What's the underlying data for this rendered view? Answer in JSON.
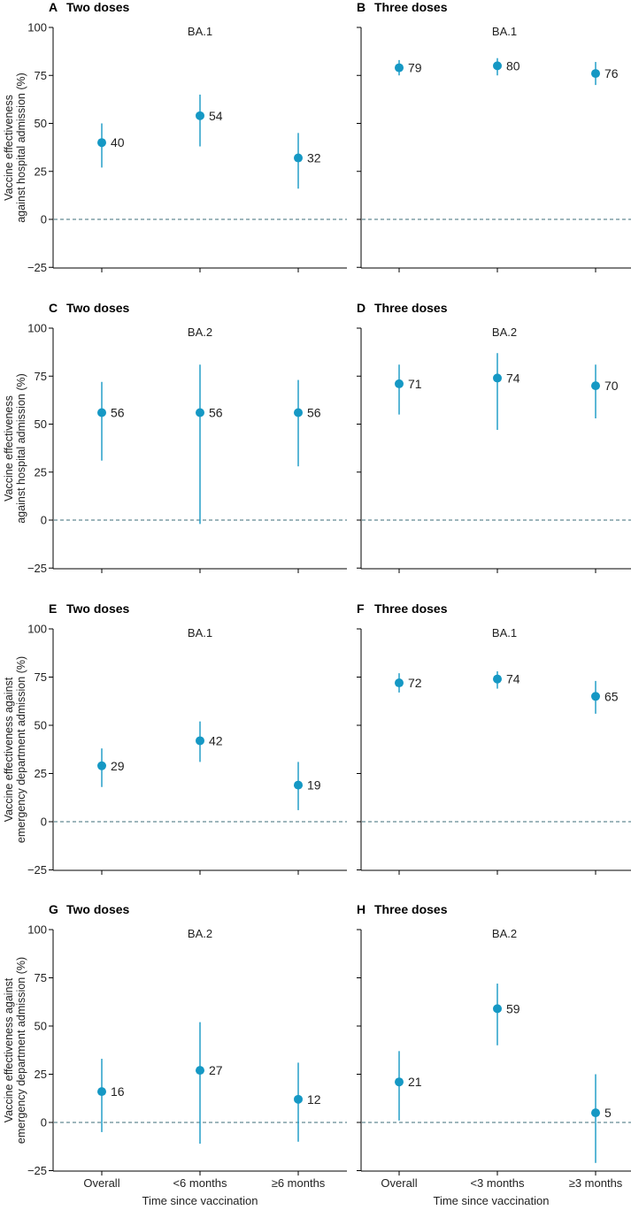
{
  "colors": {
    "point": "#1598c4",
    "ci": "#1598c4",
    "zero_line": "#3d6e7a",
    "axis": "#000000"
  },
  "chart_data": [
    {
      "type": "scatter",
      "panel": "A",
      "title": "Two doses",
      "variant": "BA.1",
      "categories": [
        "Overall",
        "<6 months",
        "≥6 months"
      ],
      "values": [
        40,
        54,
        32
      ],
      "ci_low": [
        27,
        38,
        16
      ],
      "ci_high": [
        50,
        65,
        45
      ],
      "ylim": [
        -25,
        100
      ],
      "yticks": [
        "100",
        "75",
        "50",
        "25",
        "0",
        "−25"
      ],
      "ylabel": [
        "Vaccine effectiveness",
        "against hospital admission (%)"
      ],
      "xlabel": ""
    },
    {
      "type": "scatter",
      "panel": "B",
      "title": "Three doses",
      "variant": "BA.1",
      "categories": [
        "Overall",
        "<3 months",
        "≥3 months"
      ],
      "values": [
        79,
        80,
        76
      ],
      "ci_low": [
        75,
        75,
        70
      ],
      "ci_high": [
        83,
        84,
        82
      ],
      "ylim": [
        -25,
        100
      ],
      "ylabel": [],
      "xlabel": ""
    },
    {
      "type": "scatter",
      "panel": "C",
      "title": "Two doses",
      "variant": "BA.2",
      "categories": [
        "Overall",
        "<6 months",
        "≥6 months"
      ],
      "values": [
        56,
        56,
        56
      ],
      "ci_low": [
        31,
        -2,
        28
      ],
      "ci_high": [
        72,
        81,
        73
      ],
      "ylim": [
        -25,
        100
      ],
      "yticks": [
        "100",
        "75",
        "50",
        "25",
        "0",
        "−25"
      ],
      "ylabel": [
        "Vaccine effectiveness",
        "against hospital admission (%)"
      ],
      "xlabel": ""
    },
    {
      "type": "scatter",
      "panel": "D",
      "title": "Three doses",
      "variant": "BA.2",
      "categories": [
        "Overall",
        "<3 months",
        "≥3 months"
      ],
      "values": [
        71,
        74,
        70
      ],
      "ci_low": [
        55,
        47,
        53
      ],
      "ci_high": [
        81,
        87,
        81
      ],
      "ylim": [
        -25,
        100
      ],
      "ylabel": [],
      "xlabel": ""
    },
    {
      "type": "scatter",
      "panel": "E",
      "title": "Two doses",
      "variant": "BA.1",
      "categories": [
        "Overall",
        "<6 months",
        "≥6 months"
      ],
      "values": [
        29,
        42,
        19
      ],
      "ci_low": [
        18,
        31,
        6
      ],
      "ci_high": [
        38,
        52,
        31
      ],
      "ylim": [
        -25,
        100
      ],
      "yticks": [
        "100",
        "75",
        "50",
        "25",
        "0",
        "−25"
      ],
      "ylabel": [
        "Vaccine effectiveness against",
        "emergency department admission (%)"
      ],
      "xlabel": ""
    },
    {
      "type": "scatter",
      "panel": "F",
      "title": "Three doses",
      "variant": "BA.1",
      "categories": [
        "Overall",
        "<3 months",
        "≥3 months"
      ],
      "values": [
        72,
        74,
        65
      ],
      "ci_low": [
        67,
        69,
        56
      ],
      "ci_high": [
        77,
        78,
        73
      ],
      "ylim": [
        -25,
        100
      ],
      "ylabel": [],
      "xlabel": ""
    },
    {
      "type": "scatter",
      "panel": "G",
      "title": "Two doses",
      "variant": "BA.2",
      "categories": [
        "Overall",
        "<6 months",
        "≥6 months"
      ],
      "values": [
        16,
        27,
        12
      ],
      "ci_low": [
        -5,
        -11,
        -10
      ],
      "ci_high": [
        33,
        52,
        31
      ],
      "ylim": [
        -25,
        100
      ],
      "yticks": [
        "100",
        "75",
        "50",
        "25",
        "0",
        "−25"
      ],
      "ylabel": [
        "Vaccine effectiveness against",
        "emergency department admission (%)"
      ],
      "xticks": [
        "Overall",
        "<6 months",
        "≥6 months"
      ],
      "xlabel": "Time since vaccination"
    },
    {
      "type": "scatter",
      "panel": "H",
      "title": "Three doses",
      "variant": "BA.2",
      "categories": [
        "Overall",
        "<3 months",
        "≥3 months"
      ],
      "values": [
        21,
        59,
        5
      ],
      "ci_low": [
        1,
        40,
        -21
      ],
      "ci_high": [
        37,
        72,
        25
      ],
      "ylim": [
        -25,
        100
      ],
      "ylabel": [],
      "xticks": [
        "Overall",
        "<3 months",
        "≥3 months"
      ],
      "xlabel": "Time since vaccination"
    }
  ]
}
